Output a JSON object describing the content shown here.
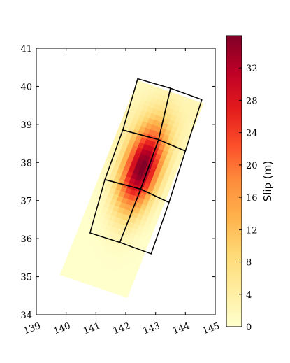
{
  "chart_data": {
    "type": "heatmap",
    "title": "",
    "xlabel": "",
    "ylabel": "",
    "xlim": [
      139,
      145
    ],
    "ylim": [
      34,
      41
    ],
    "xticks": [
      139,
      140,
      141,
      142,
      143,
      144,
      145
    ],
    "yticks": [
      34,
      35,
      36,
      37,
      38,
      39,
      40,
      41
    ],
    "grid": false,
    "slip_distribution": {
      "description": "fault slip patches shaded by slip magnitude",
      "strip_corners_lonlat": [
        [
          139.8,
          35.05
        ],
        [
          142.05,
          34.45
        ],
        [
          144.6,
          39.55
        ],
        [
          142.4,
          40.15
        ]
      ],
      "peak_center_lonlat": [
        142.55,
        37.85
      ],
      "peak_slip_m": 36
    },
    "fault_segments": [
      [
        [
          142.4,
          40.2
        ],
        [
          143.5,
          39.95
        ],
        [
          143.1,
          38.6
        ],
        [
          141.9,
          38.85
        ]
      ],
      [
        [
          143.5,
          39.95
        ],
        [
          144.55,
          39.65
        ],
        [
          144.0,
          38.3
        ],
        [
          143.1,
          38.6
        ]
      ],
      [
        [
          141.9,
          38.85
        ],
        [
          143.1,
          38.6
        ],
        [
          142.5,
          37.3
        ],
        [
          141.3,
          37.55
        ]
      ],
      [
        [
          143.1,
          38.6
        ],
        [
          144.0,
          38.3
        ],
        [
          143.45,
          36.95
        ],
        [
          142.5,
          37.3
        ]
      ],
      [
        [
          141.3,
          37.55
        ],
        [
          142.5,
          37.3
        ],
        [
          141.8,
          35.9
        ],
        [
          140.8,
          36.15
        ]
      ],
      [
        [
          142.5,
          37.3
        ],
        [
          143.45,
          36.95
        ],
        [
          142.85,
          35.6
        ],
        [
          141.8,
          35.9
        ]
      ]
    ],
    "colorbar": {
      "label": "Slip (m)",
      "range": [
        0,
        36
      ],
      "ticks": [
        0,
        4,
        8,
        12,
        16,
        20,
        24,
        28,
        32
      ],
      "colormap": [
        "#ffffcc",
        "#ffeda0",
        "#fed976",
        "#feb24c",
        "#fd8d3c",
        "#fc4e2a",
        "#e31a1c",
        "#bd0026",
        "#800026"
      ]
    }
  }
}
